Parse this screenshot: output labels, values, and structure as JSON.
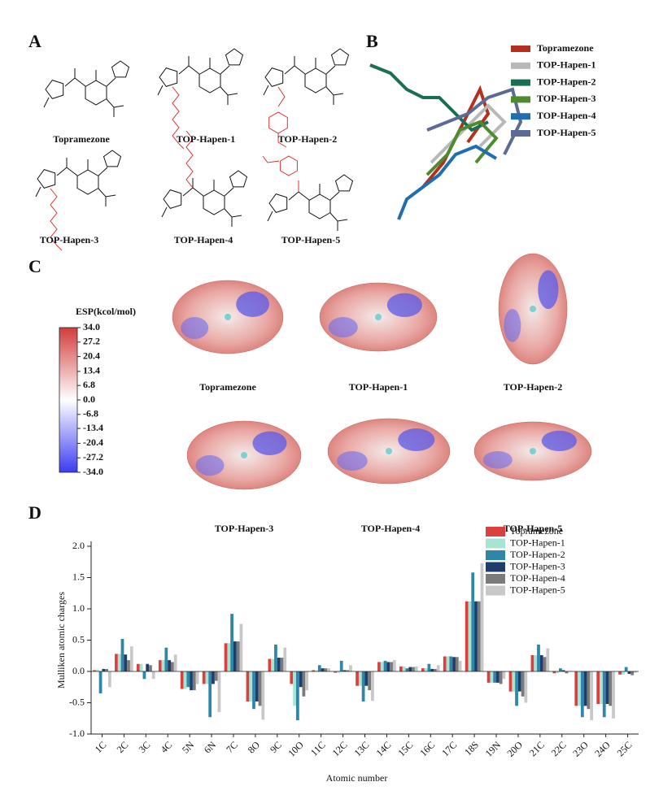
{
  "panels": [
    "A",
    "B",
    "C",
    "D"
  ],
  "structures": [
    "Topramezone",
    "TOP-Hapen-1",
    "TOP-Hapen-2",
    "TOP-Hapen-3",
    "TOP-Hapen-4",
    "TOP-Hapen-5"
  ],
  "alignment_legend": [
    {
      "name": "Topramezone",
      "color": "#b5301c"
    },
    {
      "name": "TOP-Hapen-1",
      "color": "#b8b8b8"
    },
    {
      "name": "TOP-Hapen-2",
      "color": "#1a6e52"
    },
    {
      "name": "TOP-Hapen-3",
      "color": "#4e8a2e"
    },
    {
      "name": "TOP-Hapen-4",
      "color": "#1f6fb0"
    },
    {
      "name": "TOP-Hapen-5",
      "color": "#5b6b95"
    }
  ],
  "esp_maps": [
    "Topramezone",
    "TOP-Hapen-1",
    "TOP-Hapen-2",
    "TOP-Hapen-3",
    "TOP-Hapen-4",
    "TOP-Hapen-5"
  ],
  "chart_data": [
    {
      "type": "colorbar",
      "title": "ESP(kcol/mol)",
      "ylim": [
        -34,
        34
      ],
      "yticks": [
        {
          "value": 34,
          "label": "34.0"
        },
        27.2,
        20.4,
        13.4,
        6.8,
        {
          "value": 0,
          "label": "0.0"
        },
        -6.8,
        -13.4,
        -20.4,
        -27.2,
        {
          "value": -34,
          "label": "-34.0"
        }
      ],
      "colors": [
        "#3c3cf0",
        "#ffffff",
        "#d23c3c"
      ]
    },
    {
      "type": "bar",
      "xlabel": "Atomic number",
      "ylabel": "Mulliken atomic charges",
      "categories": [
        "1C",
        "2C",
        "3C",
        "4C",
        "5N",
        "6N",
        "7C",
        "8O",
        "9C",
        "10O",
        "11C",
        "12C",
        "13C",
        "14C",
        "15C",
        "16C",
        "17C",
        "18S",
        "19N",
        "20O",
        "21C",
        "22C",
        "23O",
        "24O",
        "25C"
      ],
      "ylim": [
        -1,
        2
      ],
      "yticks": [
        {
          "value": -1,
          "label": "-1.0"
        },
        -0.5,
        {
          "value": 0,
          "label": "0.0"
        },
        0.5,
        {
          "value": 1,
          "label": "1.0"
        },
        1.5,
        {
          "value": 2,
          "label": "2.0"
        }
      ],
      "legend": "top-right",
      "series": [
        {
          "name": "Topramezone",
          "color": "#d9413f",
          "values": [
            0.02,
            0.28,
            0.12,
            0.18,
            -0.28,
            -0.2,
            0.45,
            -0.48,
            0.2,
            -0.2,
            0.02,
            -0.02,
            -0.23,
            0.15,
            0.08,
            0.05,
            0.24,
            1.12,
            -0.18,
            -0.32,
            0.26,
            -0.03,
            -0.55,
            -0.52,
            -0.05
          ]
        },
        {
          "name": "TOP-Hapen-1",
          "color": "#a8e4d4",
          "values": [
            0.03,
            0.28,
            0.12,
            0.18,
            -0.28,
            -0.2,
            0.45,
            -0.48,
            0.2,
            -0.55,
            0.02,
            -0.02,
            -0.23,
            0.15,
            0.08,
            0.05,
            0.24,
            1.12,
            -0.18,
            -0.32,
            0.26,
            -0.03,
            -0.55,
            -0.52,
            -0.05
          ]
        },
        {
          "name": "TOP-Hapen-2",
          "color": "#2e86a8",
          "values": [
            -0.35,
            0.52,
            -0.12,
            0.38,
            -0.25,
            -0.73,
            0.92,
            -0.6,
            0.43,
            -0.78,
            0.1,
            0.17,
            -0.48,
            0.17,
            0.05,
            0.12,
            0.24,
            1.58,
            -0.18,
            -0.55,
            0.43,
            0.05,
            -0.73,
            -0.73,
            0.07
          ]
        },
        {
          "name": "TOP-Hapen-3",
          "color": "#1f3d6b",
          "values": [
            0.04,
            0.27,
            0.12,
            0.18,
            -0.3,
            -0.2,
            0.48,
            -0.48,
            0.22,
            -0.25,
            0.05,
            0.02,
            -0.23,
            0.15,
            0.07,
            0.04,
            0.23,
            1.12,
            -0.18,
            -0.32,
            0.26,
            0.02,
            -0.55,
            -0.52,
            -0.04
          ]
        },
        {
          "name": "TOP-Hapen-4",
          "color": "#7a7a7a",
          "values": [
            0.04,
            0.18,
            0.1,
            0.15,
            -0.3,
            -0.15,
            0.48,
            -0.55,
            0.22,
            -0.4,
            0.05,
            0.02,
            -0.3,
            0.15,
            0.07,
            0.04,
            0.23,
            1.12,
            -0.2,
            -0.4,
            0.23,
            -0.03,
            -0.6,
            -0.55,
            -0.06
          ]
        },
        {
          "name": "TOP-Hapen-5",
          "color": "#c8c8c8",
          "values": [
            -0.25,
            0.4,
            -0.12,
            0.27,
            -0.2,
            -0.65,
            0.76,
            -0.77,
            0.38,
            -0.3,
            0.05,
            0.1,
            -0.47,
            0.18,
            0.08,
            0.1,
            0.17,
            1.73,
            -0.12,
            -0.5,
            0.37,
            0.01,
            -0.78,
            -0.75,
            -0.02
          ]
        }
      ]
    }
  ]
}
